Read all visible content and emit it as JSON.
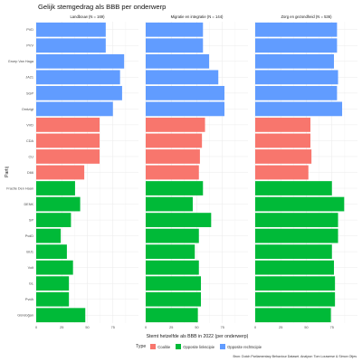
{
  "title": "Gelijk stemgedrag als BBB per onderwerp",
  "source": "Bron: Dutch Parliamentary Behaviour Dataset. Analyse: Tom Louwerse & Simon Otjes",
  "chart_data": {
    "type": "bar",
    "orientation": "horizontal",
    "xlabel": "Stemt hetzelfde als BBB in 2022 (per onderwerp)",
    "ylabel": "Partij",
    "xlim": [
      0,
      100
    ],
    "xticks": [
      0,
      25,
      50,
      75
    ],
    "grid": true,
    "legend_position": "bottom",
    "legend_title": "Type",
    "parties": [
      "PVD",
      "PVV",
      "Groep Van Haga",
      "JA21",
      "SGP",
      "Omtzigt",
      "VVD",
      "CDA",
      "CU",
      "D66",
      "Fractie Den Haan",
      "DENK",
      "SP",
      "PvdD",
      "BIJ1",
      "Volt",
      "GL",
      "PvdA",
      "Gündoğan"
    ],
    "types": [
      "Opposite rechtscipie",
      "Opposite rechtscipie",
      "Opposite rechtscipie",
      "Opposite rechtscipie",
      "Opposite rechtscipie",
      "Opposite rechtscipie",
      "Coalitie",
      "Coalitie",
      "Coalitie",
      "Coalitie",
      "Opposite linkscipie",
      "Opposite linkscipie",
      "Opposite linkscipie",
      "Opposite linkscipie",
      "Opposite linkscipie",
      "Opposite linkscipie",
      "Opposite linkscipie",
      "Opposite linkscipie",
      "Opposite linkscipie"
    ],
    "type_colors": {
      "Coalitie": "#f8766d",
      "Opposite linkscipie": "#00ba38",
      "Opposite rechtscipie": "#619cff"
    },
    "panels": [
      {
        "title": "Landbouw (N = 169)",
        "values": [
          68,
          68,
          86,
          82,
          84,
          75,
          62,
          62,
          62,
          47,
          38,
          43,
          34,
          24,
          30,
          36,
          32,
          32,
          48
        ]
      },
      {
        "title": "Migratie en integratie (N = 144)",
        "values": [
          56,
          56,
          62,
          71,
          77,
          77,
          58,
          55,
          53,
          52,
          56,
          46,
          64,
          52,
          48,
          52,
          54,
          54,
          51
        ]
      },
      {
        "title": "Zorg en gezondheid (N = 536)",
        "values": [
          80,
          80,
          77,
          81,
          80,
          85,
          54,
          54,
          55,
          52,
          75,
          87,
          81,
          81,
          75,
          77,
          78,
          78,
          74
        ]
      }
    ]
  }
}
